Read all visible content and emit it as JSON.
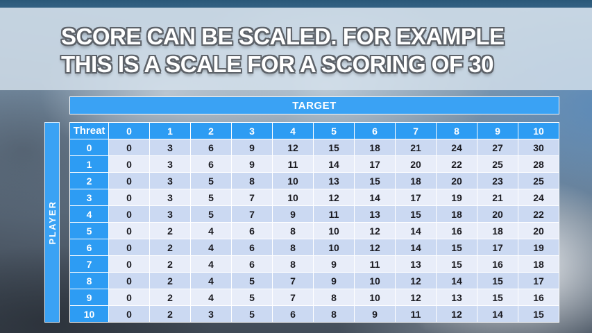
{
  "slide": {
    "title_line1": "SCORE CAN BE SCALED. FOR EXAMPLE",
    "title_line2": "THIS IS A SCALE FOR A SCORING OF 30"
  },
  "table": {
    "target_label": "TARGET",
    "player_label": "PLAYER",
    "corner_label": "Threat",
    "column_headers": [
      "0",
      "1",
      "2",
      "3",
      "4",
      "5",
      "6",
      "7",
      "8",
      "9",
      "10"
    ],
    "row_headers": [
      "0",
      "1",
      "2",
      "3",
      "4",
      "5",
      "6",
      "7",
      "8",
      "9",
      "10"
    ],
    "rows": [
      [
        0,
        3,
        6,
        9,
        12,
        15,
        18,
        21,
        24,
        27,
        30
      ],
      [
        0,
        3,
        6,
        9,
        11,
        14,
        17,
        20,
        22,
        25,
        28
      ],
      [
        0,
        3,
        5,
        8,
        10,
        13,
        15,
        18,
        20,
        23,
        25
      ],
      [
        0,
        3,
        5,
        7,
        10,
        12,
        14,
        17,
        19,
        21,
        24
      ],
      [
        0,
        3,
        5,
        7,
        9,
        11,
        13,
        15,
        18,
        20,
        22
      ],
      [
        0,
        2,
        4,
        6,
        8,
        10,
        12,
        14,
        16,
        18,
        20
      ],
      [
        0,
        2,
        4,
        6,
        8,
        10,
        12,
        14,
        15,
        17,
        19
      ],
      [
        0,
        2,
        4,
        6,
        8,
        9,
        11,
        13,
        15,
        16,
        18
      ],
      [
        0,
        2,
        4,
        5,
        7,
        9,
        10,
        12,
        14,
        15,
        17
      ],
      [
        0,
        2,
        4,
        5,
        7,
        8,
        10,
        12,
        13,
        15,
        16
      ],
      [
        0,
        2,
        3,
        5,
        6,
        8,
        9,
        11,
        12,
        14,
        15
      ]
    ]
  },
  "colors": {
    "header_blue": "#2d9cf3",
    "bar_blue": "#3aa2f4",
    "row_band_dark": "#cbd9f2",
    "row_band_light": "#e8edf9",
    "title_fill": "#ffffff",
    "title_outline": "#5d6269"
  }
}
